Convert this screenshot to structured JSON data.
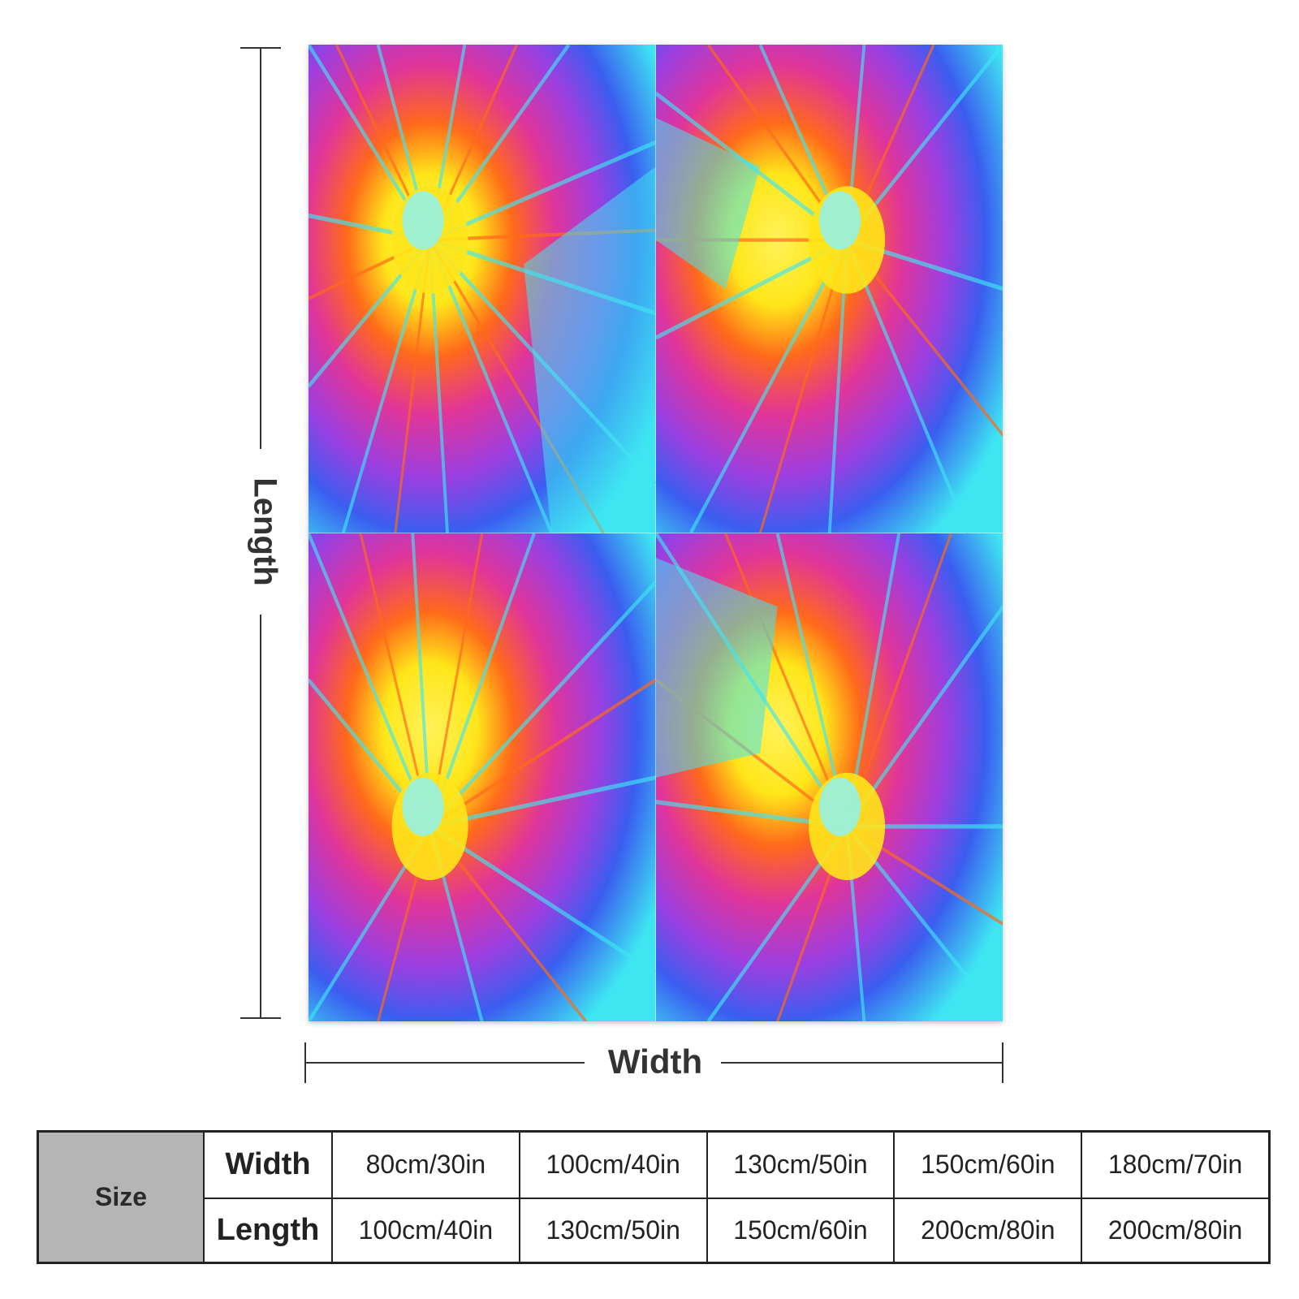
{
  "diagram": {
    "length_label": "Length",
    "width_label": "Width"
  },
  "size_table": {
    "header": "Size",
    "rows": [
      {
        "label": "Width",
        "values": [
          "80cm/30in",
          "100cm/40in",
          "130cm/50in",
          "150cm/60in",
          "180cm/70in"
        ]
      },
      {
        "label": "Length",
        "values": [
          "100cm/40in",
          "130cm/50in",
          "150cm/60in",
          "200cm/80in",
          "200cm/80in"
        ]
      }
    ]
  },
  "colors": {
    "cyan": "#3fe6f2",
    "blue": "#3a5ef0",
    "purple": "#9b3fe0",
    "magenta": "#e0359a",
    "orange": "#ff6a1a",
    "yellow": "#ffe61a",
    "table_header_bg": "#b5b5b5"
  }
}
